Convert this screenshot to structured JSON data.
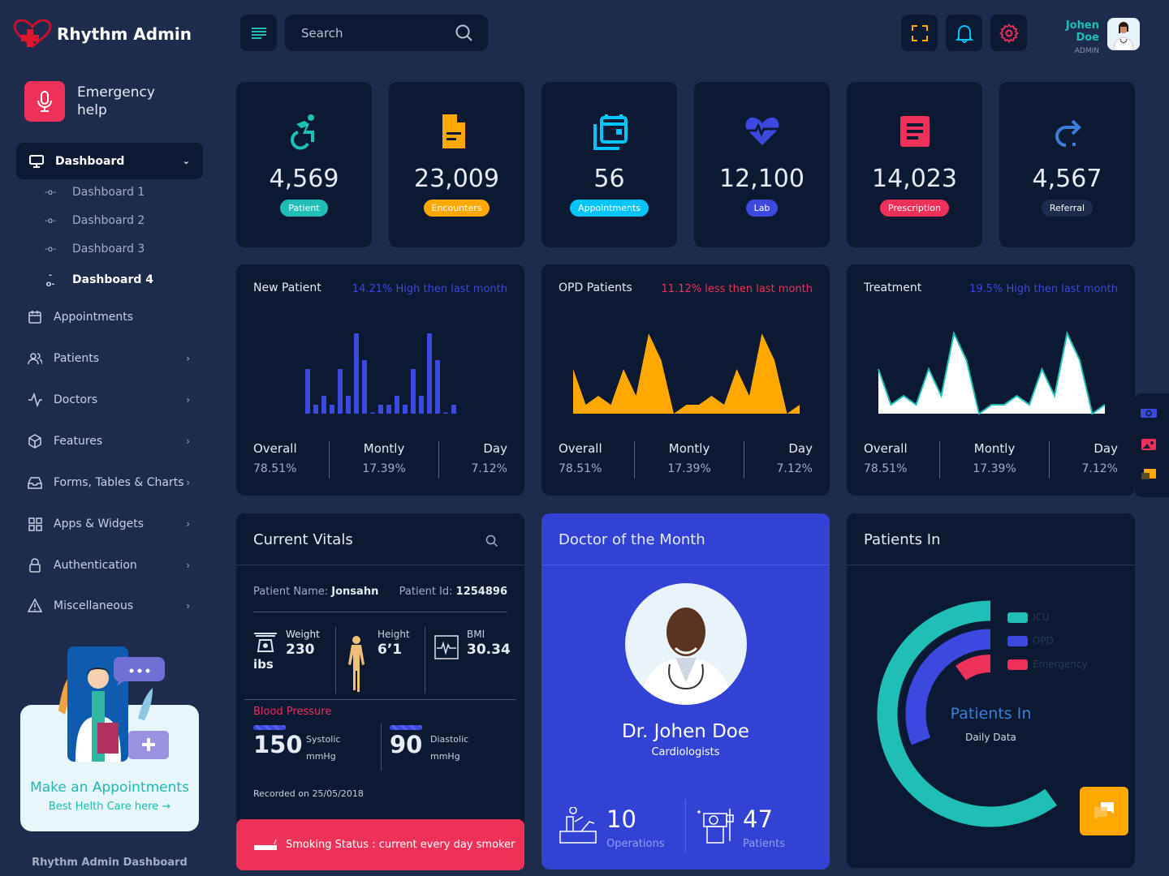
{
  "app": {
    "title": "Rhythm Admin",
    "footer": "Rhythm Admin Dashboard"
  },
  "header": {
    "search_placeholder": "Search",
    "user_name": "Johen Doe",
    "user_role": "ADMIN"
  },
  "sidebar": {
    "emergency": "Emergency help",
    "dashboard": "Dashboard",
    "sub_items": [
      {
        "label": "Dashboard 1"
      },
      {
        "label": "Dashboard 2"
      },
      {
        "label": "Dashboard 3"
      },
      {
        "label": "Dashboard 4",
        "active": true
      }
    ],
    "items": [
      {
        "label": "Appointments",
        "icon": "calendar-icon"
      },
      {
        "label": "Patients",
        "icon": "users-icon"
      },
      {
        "label": "Doctors",
        "icon": "pulse-icon"
      },
      {
        "label": "Features",
        "icon": "box-icon"
      },
      {
        "label": "Forms, Tables & Charts",
        "icon": "inbox-icon"
      },
      {
        "label": "Apps & Widgets",
        "icon": "grid-icon"
      },
      {
        "label": "Authentication",
        "icon": "lock-icon"
      },
      {
        "label": "Miscellaneous",
        "icon": "alert-icon"
      }
    ],
    "promo": {
      "title": "Make an Appointments",
      "link": "Best Helth Care here →"
    }
  },
  "stats": [
    {
      "value": "4,569",
      "label": "Patient",
      "color": "#1fbfb8",
      "icon": "wheelchair-icon"
    },
    {
      "value": "23,009",
      "label": "Encounters",
      "color": "#ffa800",
      "icon": "document-icon"
    },
    {
      "value": "56",
      "label": "Appointments",
      "color": "#00c5fb",
      "icon": "calendar-icon"
    },
    {
      "value": "12,100",
      "label": "Lab",
      "color": "#3b49df",
      "icon": "heart-pulse-icon"
    },
    {
      "value": "14,023",
      "label": "Prescription",
      "color": "#ee3158",
      "icon": "list-icon"
    },
    {
      "value": "4,567",
      "label": "Referral",
      "color": "#1d2b4c",
      "icon": "redo-icon"
    }
  ],
  "chart_data": [
    {
      "type": "bar",
      "title": "New Patient",
      "note": "14.21% High then last month",
      "note_color": "#3b49df",
      "color": "#3b49df",
      "values": [
        5,
        1,
        2,
        1,
        5,
        2,
        9,
        6,
        0,
        1,
        1,
        2,
        1,
        5,
        2,
        9,
        6,
        0,
        1
      ],
      "ylim": [
        0,
        10
      ],
      "footer": [
        {
          "label": "Overall",
          "value": "78.51%"
        },
        {
          "label": "Montly",
          "value": "17.39%"
        },
        {
          "label": "Day",
          "value": "7.12%"
        }
      ]
    },
    {
      "type": "area",
      "title": "OPD Patients",
      "note": "11.12% less then last month",
      "note_color": "#ee3158",
      "color": "#ffa800",
      "values": [
        5,
        1,
        2,
        1,
        5,
        2,
        9,
        6,
        0,
        1,
        1,
        2,
        1,
        5,
        2,
        9,
        6,
        0,
        1
      ],
      "ylim": [
        0,
        10
      ],
      "footer": [
        {
          "label": "Overall",
          "value": "78.51%"
        },
        {
          "label": "Montly",
          "value": "17.39%"
        },
        {
          "label": "Day",
          "value": "7.12%"
        }
      ]
    },
    {
      "type": "area",
      "title": "Treatment",
      "note": "19.5% High then last month",
      "note_color": "#3b49df",
      "color": "#ffffff",
      "line_color": "#1fbfb8",
      "values": [
        5,
        1,
        2,
        1,
        5,
        2,
        9,
        6,
        0,
        1,
        1,
        2,
        1,
        5,
        2,
        9,
        6,
        0,
        1
      ],
      "ylim": [
        0,
        10
      ],
      "footer": [
        {
          "label": "Overall",
          "value": "78.51%"
        },
        {
          "label": "Montly",
          "value": "17.39%"
        },
        {
          "label": "Day",
          "value": "7.12%"
        }
      ]
    },
    {
      "type": "radialBar",
      "title": "Patients In",
      "center_title": "Patients In",
      "center_subtitle": "Daily Data",
      "series": [
        {
          "name": "ICU",
          "value": 60,
          "color": "#1fbfb8"
        },
        {
          "name": "OPD",
          "value": 31,
          "color": "#3b49df"
        },
        {
          "name": "Emergency",
          "value": 10,
          "color": "#ee3158"
        }
      ]
    }
  ],
  "vitals": {
    "title": "Current Vitals",
    "patient_name_label": "Patient Name:",
    "patient_name": "Jonsahn",
    "patient_id_label": "Patient Id:",
    "patient_id": "1254896",
    "weight_label": "Weight",
    "weight": "230",
    "weight_unit": "ibs",
    "height_label": "Height",
    "height": "6’1",
    "bmi_label": "BMI",
    "bmi": "30.34",
    "bp_label": "Blood Pressure",
    "systolic": "150",
    "systolic_label": "Systolic",
    "diastolic": "90",
    "diastolic_label": "Diastolic",
    "unit": "mmHg",
    "recorded": "Recorded on 25/05/2018",
    "smoking": "Smoking Status : current every day smoker"
  },
  "doctor": {
    "title": "Doctor of the Month",
    "name": "Dr. Johen Doe",
    "specialty": "Cardiologists",
    "operations": "10",
    "operations_label": "Operations",
    "patients": "47",
    "patients_label": "Patients"
  }
}
